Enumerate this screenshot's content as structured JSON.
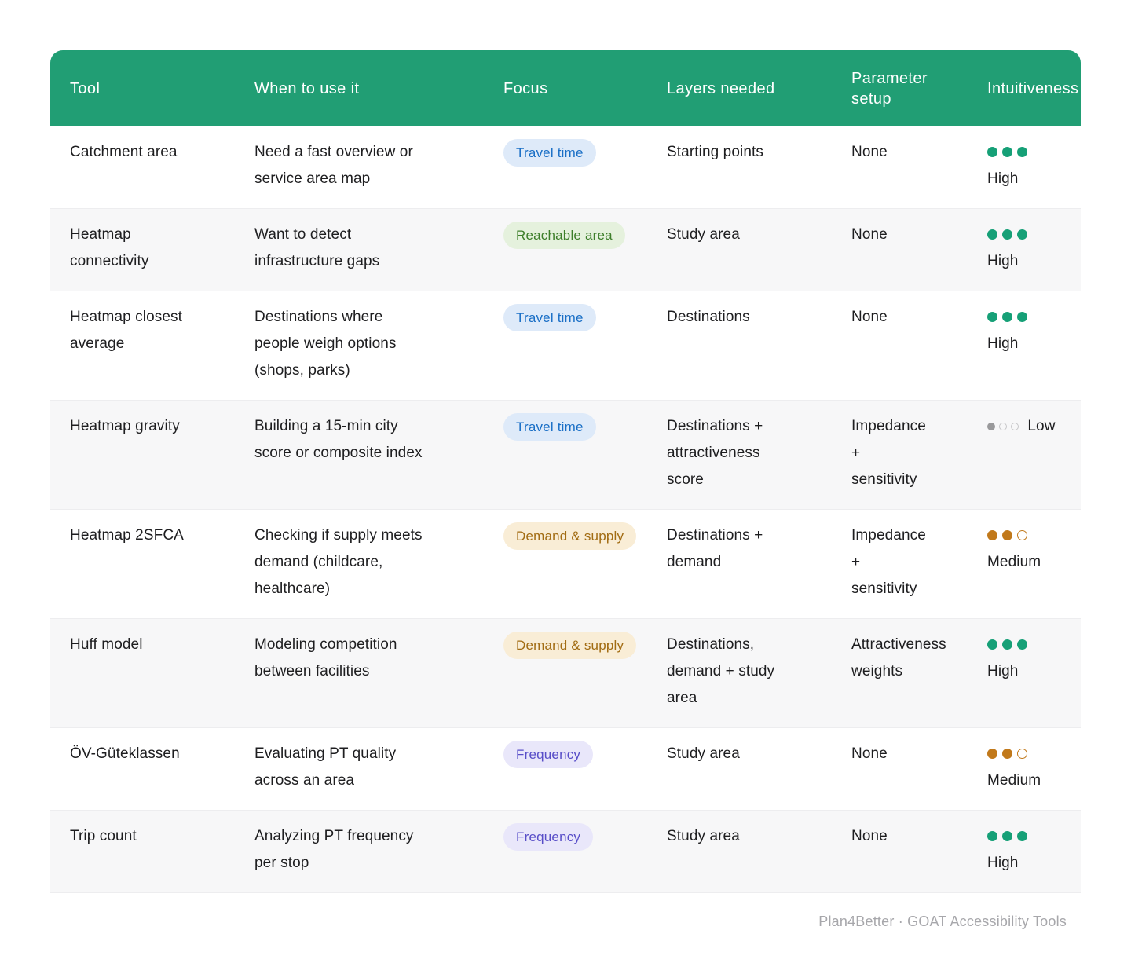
{
  "colors": {
    "header_bg": "#219E74",
    "header_fg": "#FFFFFF",
    "body_text": "#1E1E20",
    "row_stripe": "#F7F7F8",
    "row_border": "#EDEDEF",
    "footer_fg": "#A7A7AB"
  },
  "pill_styles": {
    "travel-time": {
      "bg": "#DEEAF9",
      "fg": "#1A6FC6"
    },
    "reachable-area": {
      "bg": "#E5F1DD",
      "fg": "#3D7E2A"
    },
    "demand-supply": {
      "bg": "#F9EDD6",
      "fg": "#A26C13"
    },
    "frequency": {
      "bg": "#E9E7FA",
      "fg": "#584EC8"
    }
  },
  "levels": {
    "High": {
      "dot_color": "#16A077",
      "empty_color": "#16A077"
    },
    "Medium": {
      "dot_color": "#C1791B",
      "empty_color": "#C1791B"
    },
    "Low": {
      "dot_color": "#99999B",
      "empty_color": "#C6C6C8"
    }
  },
  "table": {
    "columns": [
      {
        "id": "tool",
        "label": "Tool"
      },
      {
        "id": "when",
        "label": "When to use it"
      },
      {
        "id": "focus",
        "label": "Focus"
      },
      {
        "id": "layers",
        "label": "Layers needed"
      },
      {
        "id": "params",
        "label": "Parameter setup"
      },
      {
        "id": "intuitiveness",
        "label": "Intuitiveness"
      }
    ],
    "rows": [
      {
        "tool": "Catchment area",
        "when": "Need a fast overview or\nservice area map",
        "focus": {
          "label": "Travel time",
          "type": "travel-time"
        },
        "layers": "Starting points",
        "params": "None",
        "intuitiveness": {
          "level": "High",
          "filled": 3,
          "total": 3
        }
      },
      {
        "tool": "Heatmap\nconnectivity",
        "when": "Want to detect\ninfrastructure gaps",
        "focus": {
          "label": "Reachable area",
          "type": "reachable-area"
        },
        "layers": "Study area",
        "params": "None",
        "intuitiveness": {
          "level": "High",
          "filled": 3,
          "total": 3
        }
      },
      {
        "tool": "Heatmap closest\naverage",
        "when": "Destinations where\npeople weigh options\n(shops, parks)",
        "focus": {
          "label": "Travel time",
          "type": "travel-time"
        },
        "layers": "Destinations",
        "params": "None",
        "intuitiveness": {
          "level": "High",
          "filled": 3,
          "total": 3
        }
      },
      {
        "tool": "Heatmap gravity",
        "when": "Building a 15-min city\nscore or composite index",
        "focus": {
          "label": "Travel time",
          "type": "travel-time"
        },
        "layers": "Destinations +\nattractiveness\nscore",
        "params": "Impedance\n+\nsensitivity",
        "intuitiveness": {
          "level": "Low",
          "filled": 1,
          "total": 3
        }
      },
      {
        "tool": "Heatmap 2SFCA",
        "when": "Checking if supply meets\ndemand (childcare,\nhealthcare)",
        "focus": {
          "label": "Demand & supply",
          "type": "demand-supply"
        },
        "layers": "Destinations +\ndemand",
        "params": "Impedance\n+\nsensitivity",
        "intuitiveness": {
          "level": "Medium",
          "filled": 2,
          "total": 3
        }
      },
      {
        "tool": "Huff model",
        "when": "Modeling competition\nbetween facilities",
        "focus": {
          "label": "Demand & supply",
          "type": "demand-supply"
        },
        "layers": "Destinations,\ndemand + study\narea",
        "params": "Attractiveness\nweights",
        "intuitiveness": {
          "level": "High",
          "filled": 3,
          "total": 3
        }
      },
      {
        "tool": "ÖV-Güteklassen",
        "when": "Evaluating PT quality\nacross an area",
        "focus": {
          "label": "Frequency",
          "type": "frequency"
        },
        "layers": "Study area",
        "params": "None",
        "intuitiveness": {
          "level": "Medium",
          "filled": 2,
          "total": 3
        }
      },
      {
        "tool": "Trip count",
        "when": "Analyzing PT frequency\nper stop",
        "focus": {
          "label": "Frequency",
          "type": "frequency"
        },
        "layers": "Study area",
        "params": "None",
        "intuitiveness": {
          "level": "High",
          "filled": 3,
          "total": 3
        }
      }
    ]
  },
  "footer": {
    "credit": "Plan4Better · GOAT Accessibility Tools"
  }
}
